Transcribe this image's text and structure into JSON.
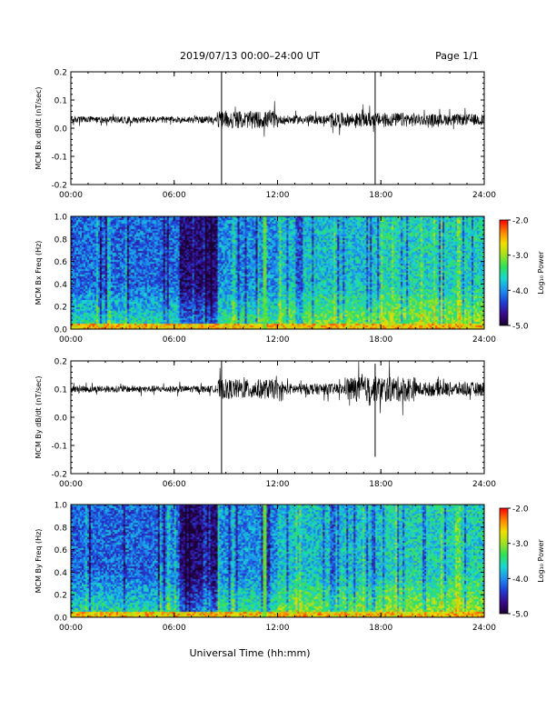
{
  "header": {
    "title": "2019/07/13  00:00–24:00 UT",
    "page": "Page 1/1"
  },
  "footer": {
    "xlabel": "Universal Time (hh:mm)"
  },
  "colors": {
    "trace": "#000000",
    "colormap": [
      "#1a0030",
      "#3a0a8a",
      "#1f3fd6",
      "#1e8ff0",
      "#19d6d0",
      "#2ee05a",
      "#a0e020",
      "#f0e000",
      "#ff8000",
      "#ff0000"
    ]
  },
  "chart_data": [
    {
      "type": "line",
      "ylabel": "MCM Bx dB/dt (nT/sec)",
      "ylim": [
        -0.2,
        0.2
      ],
      "yticks": [
        "0.2",
        "0.1",
        "0.0",
        "-0.1",
        "-0.2"
      ],
      "xticks": [
        "00:00",
        "06:00",
        "12:00",
        "18:00",
        "24:00"
      ],
      "xlim_hours": [
        0,
        24
      ],
      "baseline": 0.03,
      "spikes": [
        {
          "time": "08:45",
          "min": -0.2,
          "max": 0.2
        },
        {
          "time": "17:40",
          "min": -0.2,
          "max": 0.2
        }
      ],
      "activity_envelope": [
        {
          "hours": [
            0,
            8.5
          ],
          "amp": 0.012
        },
        {
          "hours": [
            8.5,
            12
          ],
          "amp": 0.03
        },
        {
          "hours": [
            12,
            15
          ],
          "amp": 0.015
        },
        {
          "hours": [
            15,
            20
          ],
          "amp": 0.025
        },
        {
          "hours": [
            20,
            24
          ],
          "amp": 0.02
        }
      ]
    },
    {
      "type": "heatmap",
      "ylabel": "MCM Bx Freq (Hz)",
      "ylim": [
        0.0,
        1.0
      ],
      "yticks": [
        "1.0",
        "0.8",
        "0.6",
        "0.4",
        "0.2",
        "0.0"
      ],
      "xticks": [
        "00:00",
        "06:00",
        "12:00",
        "18:00",
        "24:00"
      ],
      "colorbar": {
        "label": "Log₁₀ Power",
        "range": [
          -5.0,
          -2.0
        ],
        "ticks": [
          "-2.0",
          "-3.0",
          "-4.0",
          "-5.0"
        ]
      },
      "line_feature_hour": 11.2
    },
    {
      "type": "line",
      "ylabel": "MCM By dB/dt (nT/sec)",
      "ylim": [
        -0.2,
        0.2
      ],
      "yticks": [
        "0.2",
        "0.1",
        "0.0",
        "-0.1",
        "-0.2"
      ],
      "xticks": [
        "00:00",
        "06:00",
        "12:00",
        "18:00",
        "24:00"
      ],
      "xlim_hours": [
        0,
        24
      ],
      "baseline": 0.1,
      "spikes": [
        {
          "time": "08:45",
          "min": -0.2,
          "max": 0.2
        },
        {
          "time": "17:40",
          "min": -0.14,
          "max": 0.19
        }
      ],
      "activity_envelope": [
        {
          "hours": [
            0,
            8.5
          ],
          "amp": 0.012
        },
        {
          "hours": [
            8.5,
            12
          ],
          "amp": 0.035
        },
        {
          "hours": [
            12,
            16
          ],
          "amp": 0.02
        },
        {
          "hours": [
            16,
            20
          ],
          "amp": 0.045
        },
        {
          "hours": [
            20,
            24
          ],
          "amp": 0.025
        }
      ]
    },
    {
      "type": "heatmap",
      "ylabel": "MCM By Freq (Hz)",
      "ylim": [
        0.0,
        1.0
      ],
      "yticks": [
        "1.0",
        "0.8",
        "0.6",
        "0.4",
        "0.2",
        "0.0"
      ],
      "xticks": [
        "00:00",
        "06:00",
        "12:00",
        "18:00",
        "24:00"
      ],
      "colorbar": {
        "label": "Log₁₀ Power",
        "range": [
          -5.0,
          -2.0
        ],
        "ticks": [
          "-2.0",
          "-3.0",
          "-4.0",
          "-5.0"
        ]
      },
      "line_feature_hour": 11.2
    }
  ]
}
